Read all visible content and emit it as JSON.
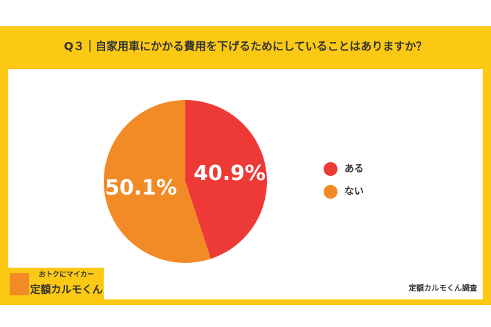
{
  "chart_data": {
    "type": "pie",
    "title": "Q３｜自家用車にかかる費用を下げるためにしていることはありますか？",
    "categories": [
      "ある",
      "ない"
    ],
    "values": [
      40.9,
      50.1
    ],
    "value_labels": [
      "40.9%",
      "50.1%"
    ],
    "colors": [
      "#ee3a36",
      "#f28a26"
    ],
    "legend": "right",
    "logo": {
      "tagline": "おトクにマイカー",
      "brand": "定額カルモくん"
    },
    "source": "定額カルモくん調査"
  }
}
